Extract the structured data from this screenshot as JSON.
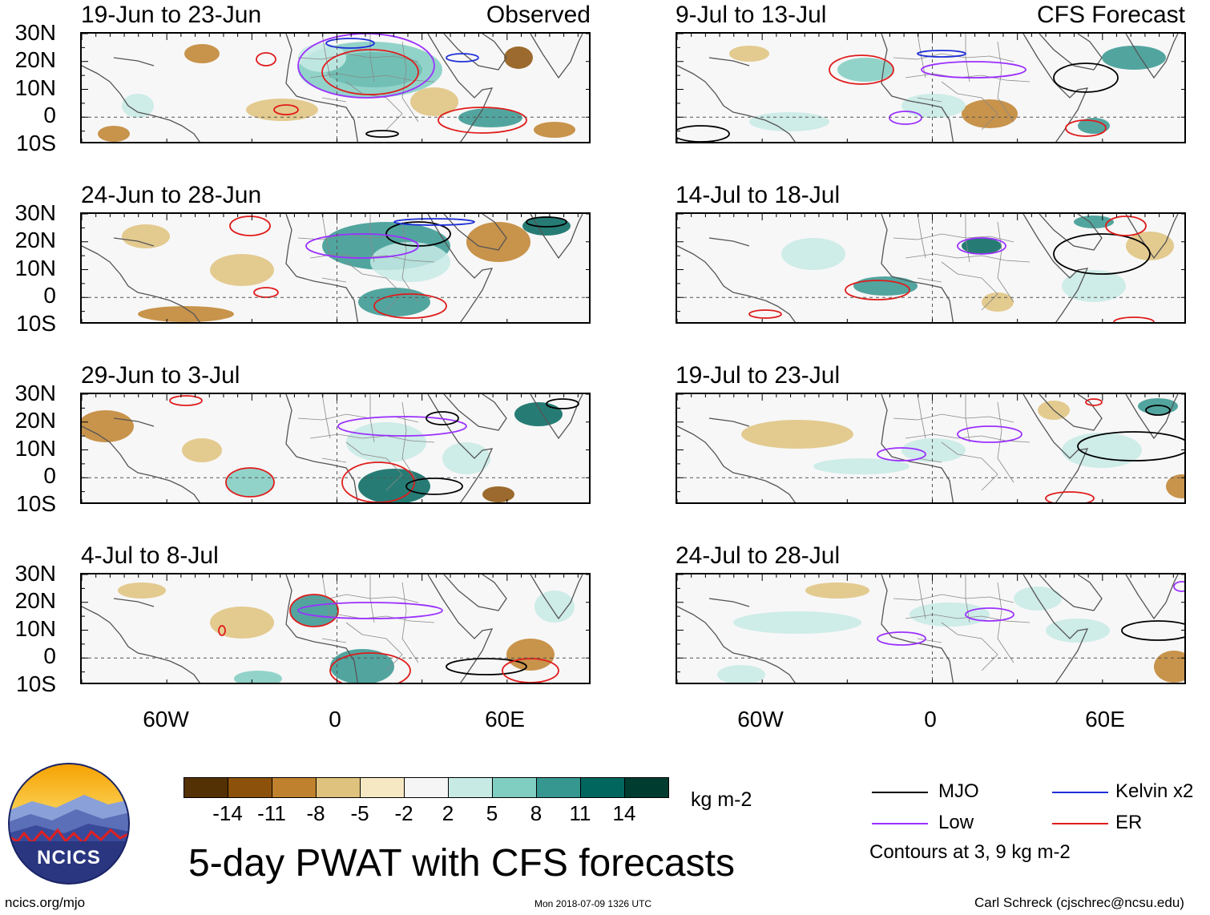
{
  "panels": [
    {
      "title": "19-Jun to 23-Jun",
      "tag": "Observed"
    },
    {
      "title": "24-Jun to 28-Jun",
      "tag": ""
    },
    {
      "title": "29-Jun to 3-Jul",
      "tag": ""
    },
    {
      "title": "4-Jul to 8-Jul",
      "tag": ""
    },
    {
      "title": "9-Jul to 13-Jul",
      "tag": "CFS Forecast"
    },
    {
      "title": "14-Jul to 18-Jul",
      "tag": ""
    },
    {
      "title": "19-Jul to 23-Jul",
      "tag": ""
    },
    {
      "title": "24-Jul to 28-Jul",
      "tag": ""
    }
  ],
  "lat_labels": [
    "30N",
    "20N",
    "10N",
    "0",
    "10S"
  ],
  "lon_labels": [
    "60W",
    "0",
    "60E"
  ],
  "colorbar": {
    "colors": [
      "#543005",
      "#8c510a",
      "#bf812d",
      "#dfc27d",
      "#f6e8c3",
      "#f5f5f5",
      "#c7eae5",
      "#80cdc1",
      "#35978f",
      "#01665e",
      "#003c30"
    ],
    "labels": [
      "-14",
      "-11",
      "-8",
      "-5",
      "-2",
      "2",
      "5",
      "8",
      "11",
      "14"
    ],
    "unit": "kg m-2"
  },
  "legend": {
    "mjo": {
      "label": "MJO",
      "color": "#000000"
    },
    "kelvin": {
      "label": "Kelvin x2",
      "color": "#1f2fd6"
    },
    "low": {
      "label": "Low",
      "color": "#9b30ff"
    },
    "er": {
      "label": "ER",
      "color": "#e01b1b"
    },
    "note": "Contours at 3, 9 kg m-2"
  },
  "title": "5-day PWAT with CFS forecasts",
  "footer": {
    "logo_text": "NCICS",
    "site": "ncics.org/mjo",
    "timestamp": "Mon 2018-07-09 1326 UTC",
    "author": "Carl Schreck (cjschrec@ncsu.edu)"
  }
}
